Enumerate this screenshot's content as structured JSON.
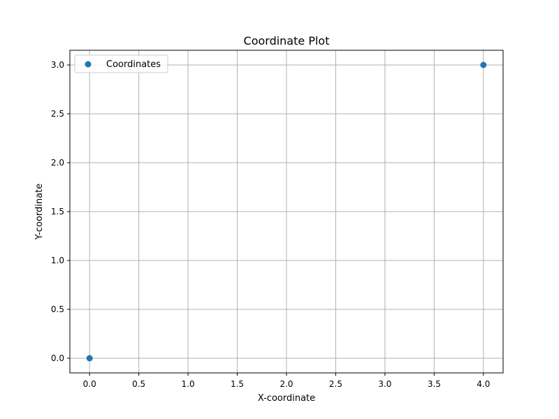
{
  "chart_data": {
    "type": "scatter",
    "title": "Coordinate Plot",
    "xlabel": "X-coordinate",
    "ylabel": "Y-coordinate",
    "xlim": [
      -0.2,
      4.2
    ],
    "ylim": [
      -0.15,
      3.15
    ],
    "xticks": [
      0.0,
      0.5,
      1.0,
      1.5,
      2.0,
      2.5,
      3.0,
      3.5,
      4.0
    ],
    "xtick_labels": [
      "0.0",
      "0.5",
      "1.0",
      "1.5",
      "2.0",
      "2.5",
      "3.0",
      "3.5",
      "4.0"
    ],
    "yticks": [
      0.0,
      0.5,
      1.0,
      1.5,
      2.0,
      2.5,
      3.0
    ],
    "ytick_labels": [
      "0.0",
      "0.5",
      "1.0",
      "1.5",
      "2.0",
      "2.5",
      "3.0"
    ],
    "grid": true,
    "legend_position": "top-left",
    "series": [
      {
        "name": "Coordinates",
        "color": "#1f77b4",
        "points": [
          {
            "x": 0,
            "y": 0
          },
          {
            "x": 4,
            "y": 3
          }
        ]
      }
    ]
  }
}
